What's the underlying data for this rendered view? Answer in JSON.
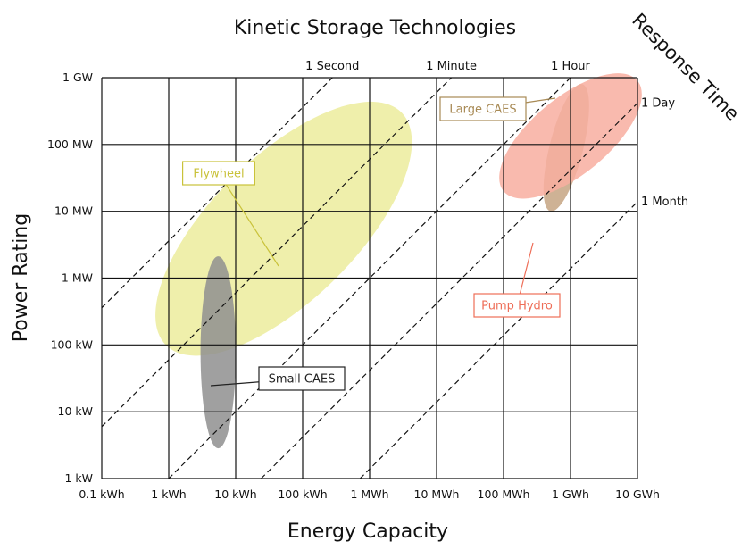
{
  "chart_data": {
    "type": "scatter",
    "title": "Kinetic Storage Technologies",
    "xlabel": "Energy Capacity",
    "ylabel": "Power Rating",
    "x_scale": "log",
    "y_scale": "log",
    "x_ticks": [
      "0.1 kWh",
      "1 kWh",
      "10 kWh",
      "100 kWh",
      "1 MWh",
      "10 MWh",
      "100 MWh",
      "1 GWh",
      "10 GWh"
    ],
    "y_ticks": [
      "1 kW",
      "10 kW",
      "100 kW",
      "1 MW",
      "10 MW",
      "100 MW",
      "1 GW"
    ],
    "grid": true,
    "response_time": {
      "title": "Response Time",
      "lines": [
        {
          "label": "1 Second",
          "seconds": 1
        },
        {
          "label": "1 Minute",
          "seconds": 60
        },
        {
          "label": "1 Hour",
          "seconds": 3600
        },
        {
          "label": "1 Day",
          "seconds": 86400
        },
        {
          "label": "1 Month",
          "seconds": 2592000
        }
      ]
    },
    "regions": [
      {
        "name": "Flywheel",
        "color": "#ecec9c",
        "label_color": "#c9c23a",
        "energy_kwh": [
          0.9,
          3000
        ],
        "power_kw": [
          100,
          300000
        ]
      },
      {
        "name": "Small CAES",
        "color": "#8f8f8f",
        "label_color": "#222222",
        "energy_kwh": [
          3,
          10
        ],
        "power_kw": [
          3,
          2000
        ]
      },
      {
        "name": "Large CAES",
        "color": "#c6a582",
        "label_color": "#a88a55",
        "energy_kwh": [
          500000,
          1500000
        ],
        "power_kw": [
          10000,
          800000
        ]
      },
      {
        "name": "Pump Hydro",
        "color": "#f8aea0",
        "label_color": "#ee6e58",
        "energy_kwh": [
          100000,
          10000000
        ],
        "power_kw": [
          20000,
          900000
        ]
      }
    ]
  }
}
